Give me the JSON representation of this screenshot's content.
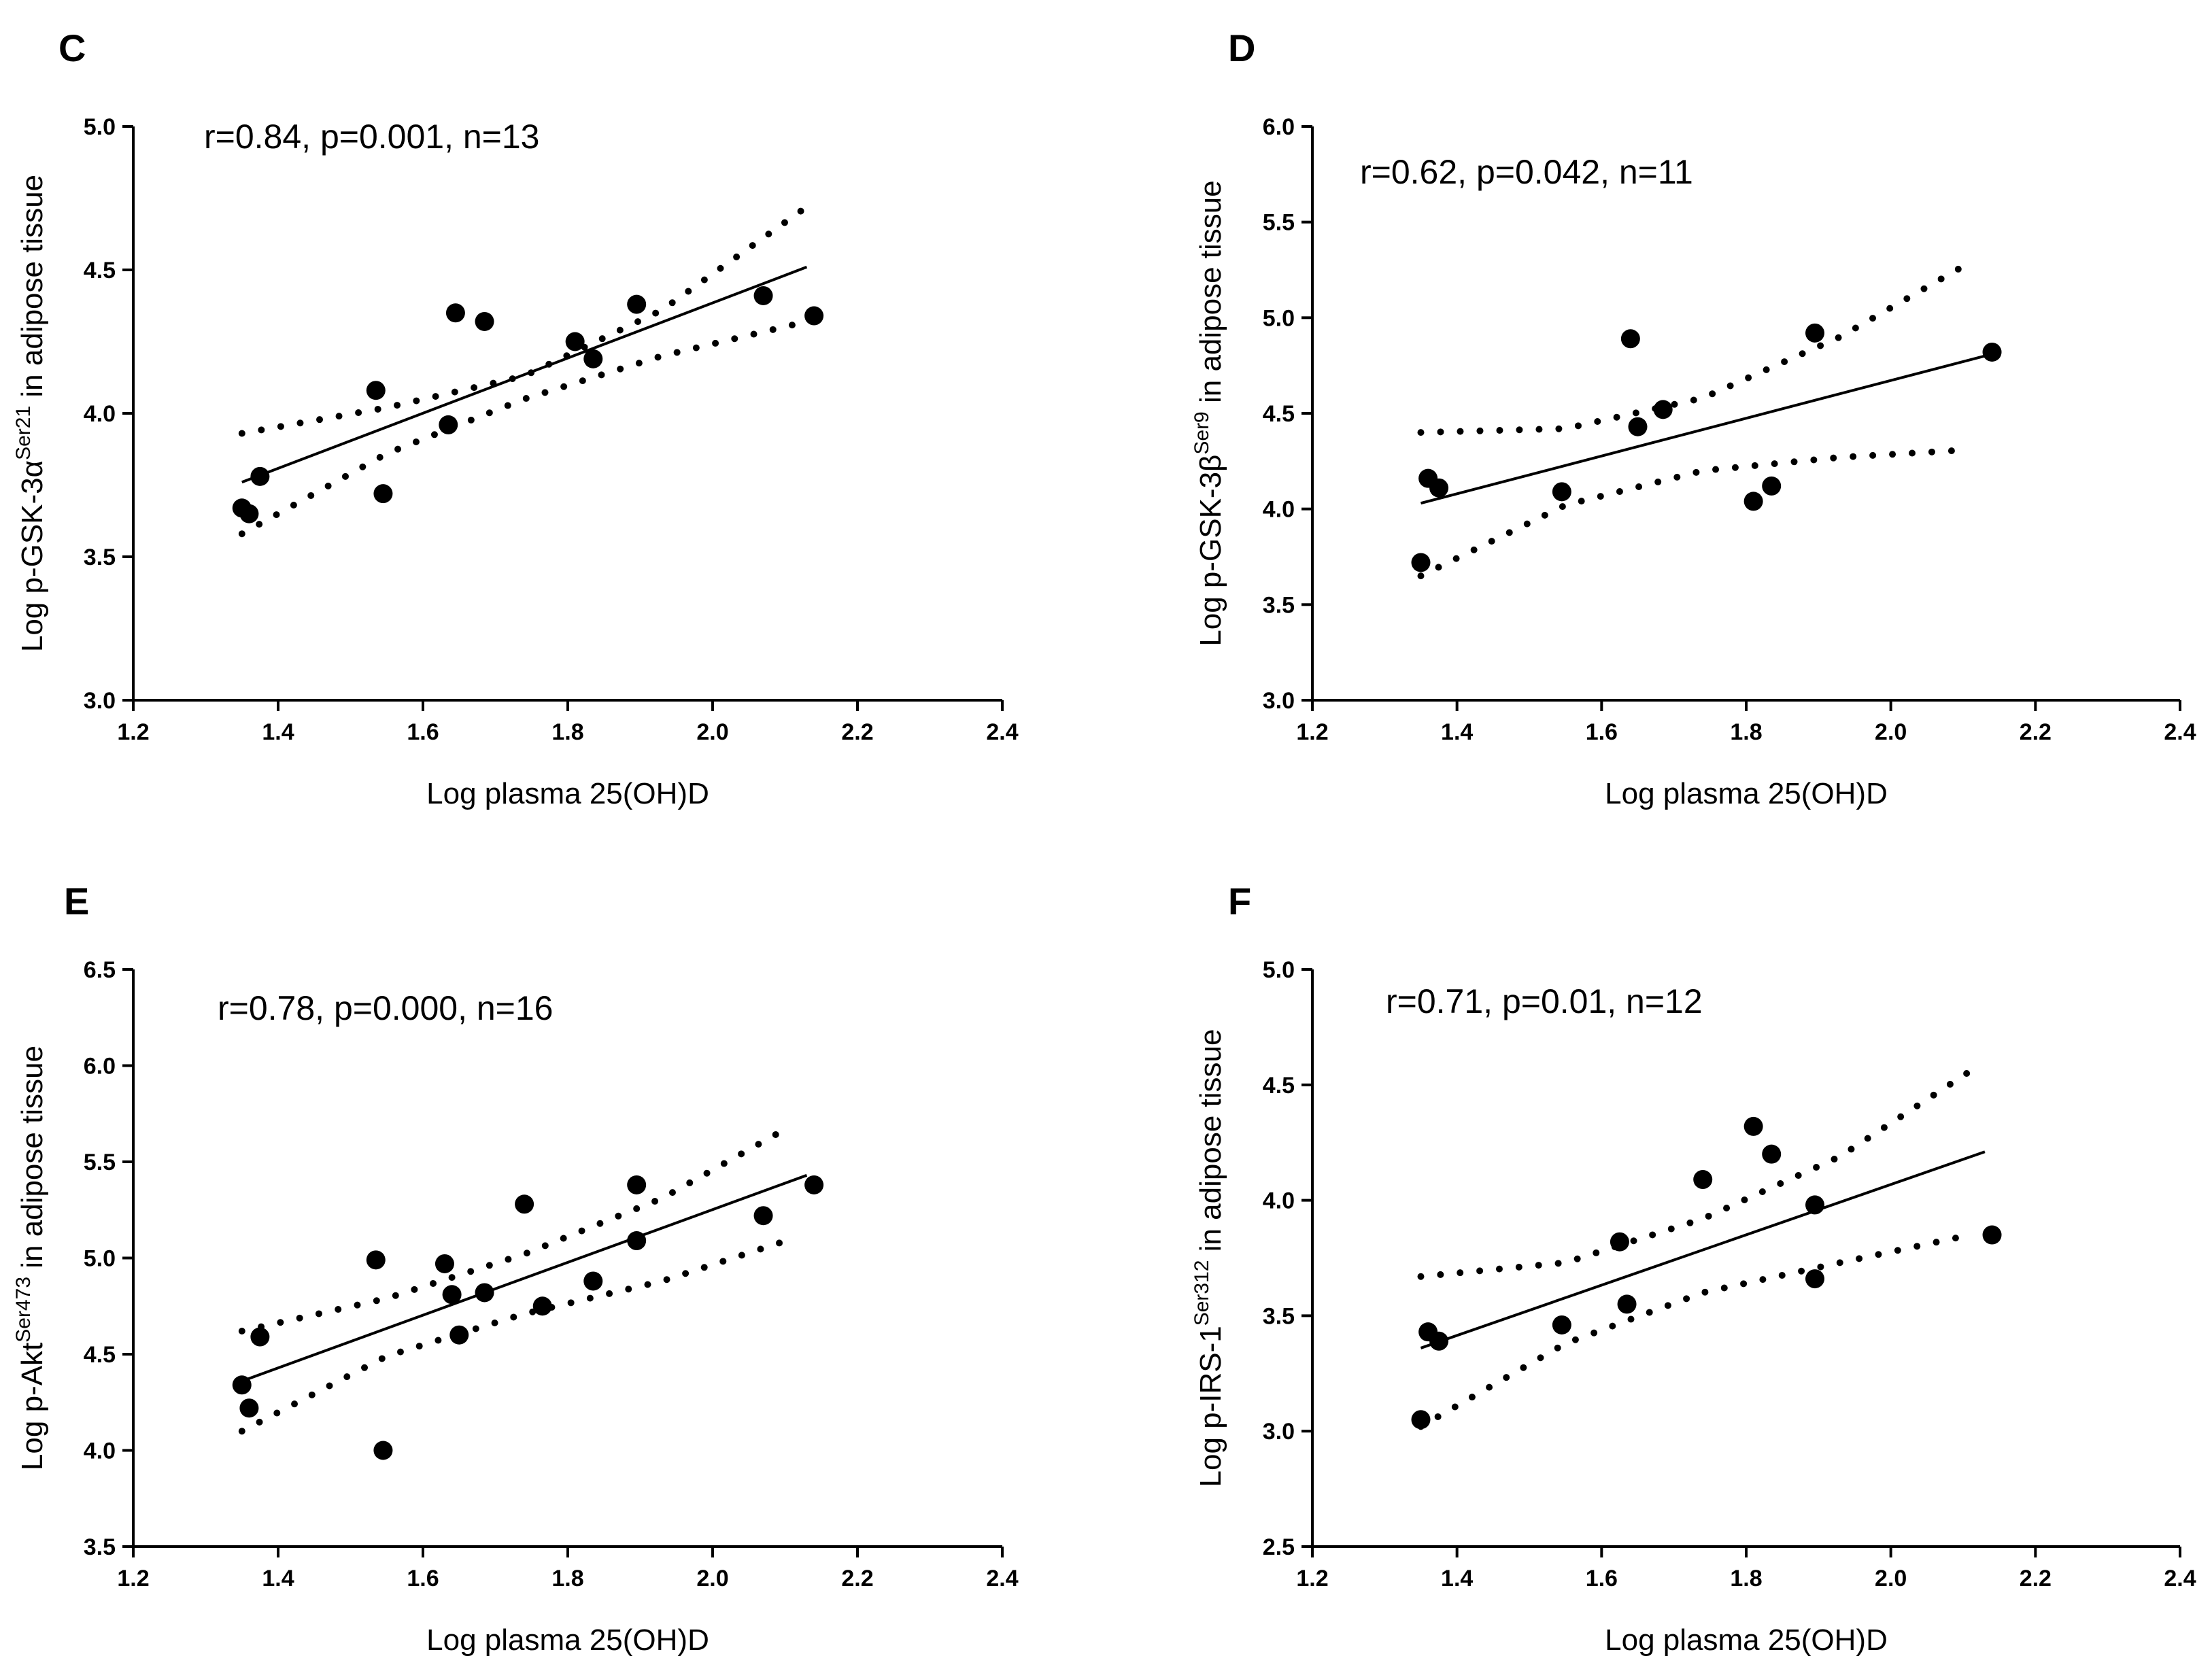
{
  "chart_data": [
    {
      "type": "scatter",
      "panel": "C",
      "annotation": "r=0.84, p=0.001, n=13",
      "xlabel": "Log plasma 25(OH)D",
      "ylabel": {
        "prefix": "Log p-GSK-3α",
        "sup": "Ser21",
        "suffix": " in adipose tissue"
      },
      "xlim": [
        1.2,
        2.4
      ],
      "ylim": [
        3.0,
        5.0
      ],
      "xticks": [
        "1.2",
        "1.4",
        "1.6",
        "1.8",
        "2.0",
        "2.2",
        "2.4"
      ],
      "yticks": [
        "3.0",
        "3.5",
        "4.0",
        "4.5",
        "5.0"
      ],
      "points": [
        [
          1.35,
          3.67
        ],
        [
          1.36,
          3.65
        ],
        [
          1.375,
          3.78
        ],
        [
          1.535,
          4.08
        ],
        [
          1.545,
          3.72
        ],
        [
          1.635,
          3.96
        ],
        [
          1.645,
          4.35
        ],
        [
          1.685,
          4.32
        ],
        [
          1.81,
          4.25
        ],
        [
          1.835,
          4.19
        ],
        [
          1.895,
          4.38
        ],
        [
          2.07,
          4.41
        ],
        [
          2.14,
          4.34
        ]
      ],
      "fit": [
        [
          1.35,
          3.76
        ],
        [
          2.13,
          4.51
        ]
      ],
      "ci_upper": [
        [
          1.35,
          3.93
        ],
        [
          1.55,
          4.02
        ],
        [
          1.74,
          4.13
        ],
        [
          1.93,
          4.36
        ],
        [
          2.13,
          4.72
        ]
      ],
      "ci_lower": [
        [
          1.35,
          3.58
        ],
        [
          1.55,
          3.86
        ],
        [
          1.74,
          4.05
        ],
        [
          1.93,
          4.2
        ],
        [
          2.13,
          4.32
        ]
      ]
    },
    {
      "type": "scatter",
      "panel": "D",
      "annotation": "r=0.62, p=0.042, n=11",
      "xlabel": "Log plasma 25(OH)D",
      "ylabel": {
        "prefix": "Log p-GSK-3β",
        "sup": "Ser9",
        "suffix": " in adipose tissue"
      },
      "xlim": [
        1.2,
        2.4
      ],
      "ylim": [
        3.0,
        6.0
      ],
      "xticks": [
        "1.2",
        "1.4",
        "1.6",
        "1.8",
        "2.0",
        "2.2",
        "2.4"
      ],
      "yticks": [
        "3.0",
        "3.5",
        "4.0",
        "4.5",
        "5.0",
        "5.5",
        "6.0"
      ],
      "points": [
        [
          1.35,
          3.72
        ],
        [
          1.36,
          4.16
        ],
        [
          1.375,
          4.11
        ],
        [
          1.545,
          4.09
        ],
        [
          1.64,
          4.89
        ],
        [
          1.65,
          4.43
        ],
        [
          1.685,
          4.52
        ],
        [
          1.81,
          4.04
        ],
        [
          1.835,
          4.12
        ],
        [
          1.895,
          4.92
        ],
        [
          2.14,
          4.82
        ]
      ],
      "fit": [
        [
          1.35,
          4.03
        ],
        [
          2.14,
          4.81
        ]
      ],
      "ci_upper": [
        [
          1.35,
          4.4
        ],
        [
          1.55,
          4.42
        ],
        [
          1.74,
          4.58
        ],
        [
          1.93,
          4.9
        ],
        [
          2.11,
          5.29
        ]
      ],
      "ci_lower": [
        [
          1.35,
          3.65
        ],
        [
          1.55,
          4.02
        ],
        [
          1.74,
          4.2
        ],
        [
          1.93,
          4.27
        ],
        [
          2.11,
          4.31
        ]
      ]
    },
    {
      "type": "scatter",
      "panel": "E",
      "annotation": "r=0.78, p=0.000, n=16",
      "xlabel": "Log plasma 25(OH)D",
      "ylabel": {
        "prefix": "Log p-Akt",
        "sup": "Ser473",
        "suffix": " in adipose tissue"
      },
      "xlim": [
        1.2,
        2.4
      ],
      "ylim": [
        3.5,
        6.5
      ],
      "xticks": [
        "1.2",
        "1.4",
        "1.6",
        "1.8",
        "2.0",
        "2.2",
        "2.4"
      ],
      "yticks": [
        "3.5",
        "4.0",
        "4.5",
        "5.0",
        "5.5",
        "6.0",
        "6.5"
      ],
      "points": [
        [
          1.35,
          4.34
        ],
        [
          1.36,
          4.22
        ],
        [
          1.375,
          4.59
        ],
        [
          1.535,
          4.99
        ],
        [
          1.545,
          4.0
        ],
        [
          1.63,
          4.97
        ],
        [
          1.64,
          4.81
        ],
        [
          1.65,
          4.6
        ],
        [
          1.685,
          4.82
        ],
        [
          1.74,
          5.28
        ],
        [
          1.765,
          4.75
        ],
        [
          1.835,
          4.88
        ],
        [
          1.895,
          5.38
        ],
        [
          1.895,
          5.09
        ],
        [
          2.07,
          5.22
        ],
        [
          2.14,
          5.38
        ]
      ],
      "fit": [
        [
          1.35,
          4.36
        ],
        [
          2.13,
          5.43
        ]
      ],
      "ci_upper": [
        [
          1.35,
          4.62
        ],
        [
          1.55,
          4.79
        ],
        [
          1.74,
          5.02
        ],
        [
          1.93,
          5.31
        ],
        [
          2.11,
          5.69
        ]
      ],
      "ci_lower": [
        [
          1.35,
          4.1
        ],
        [
          1.55,
          4.49
        ],
        [
          1.74,
          4.71
        ],
        [
          1.93,
          4.88
        ],
        [
          2.11,
          5.1
        ]
      ]
    },
    {
      "type": "scatter",
      "panel": "F",
      "annotation": "r=0.71, p=0.01, n=12",
      "xlabel": "Log plasma 25(OH)D",
      "ylabel": {
        "prefix": "Log p-IRS-1",
        "sup": "Ser312",
        "suffix": " in adipose tissue"
      },
      "xlim": [
        1.2,
        2.4
      ],
      "ylim": [
        2.5,
        5.0
      ],
      "xticks": [
        "1.2",
        "1.4",
        "1.6",
        "1.8",
        "2.0",
        "2.2",
        "2.4"
      ],
      "yticks": [
        "2.5",
        "3.0",
        "3.5",
        "4.0",
        "4.5",
        "5.0"
      ],
      "points": [
        [
          1.35,
          3.05
        ],
        [
          1.36,
          3.43
        ],
        [
          1.375,
          3.39
        ],
        [
          1.545,
          3.46
        ],
        [
          1.625,
          3.82
        ],
        [
          1.635,
          3.55
        ],
        [
          1.74,
          4.09
        ],
        [
          1.81,
          4.32
        ],
        [
          1.835,
          4.2
        ],
        [
          1.895,
          3.98
        ],
        [
          1.895,
          3.66
        ],
        [
          2.14,
          3.85
        ]
      ],
      "fit": [
        [
          1.35,
          3.36
        ],
        [
          2.13,
          4.21
        ]
      ],
      "ci_upper": [
        [
          1.35,
          3.67
        ],
        [
          1.55,
          3.73
        ],
        [
          1.74,
          3.92
        ],
        [
          1.93,
          4.19
        ],
        [
          2.11,
          4.56
        ]
      ],
      "ci_lower": [
        [
          1.35,
          3.02
        ],
        [
          1.55,
          3.38
        ],
        [
          1.74,
          3.6
        ],
        [
          1.93,
          3.73
        ],
        [
          2.11,
          3.85
        ]
      ]
    }
  ]
}
